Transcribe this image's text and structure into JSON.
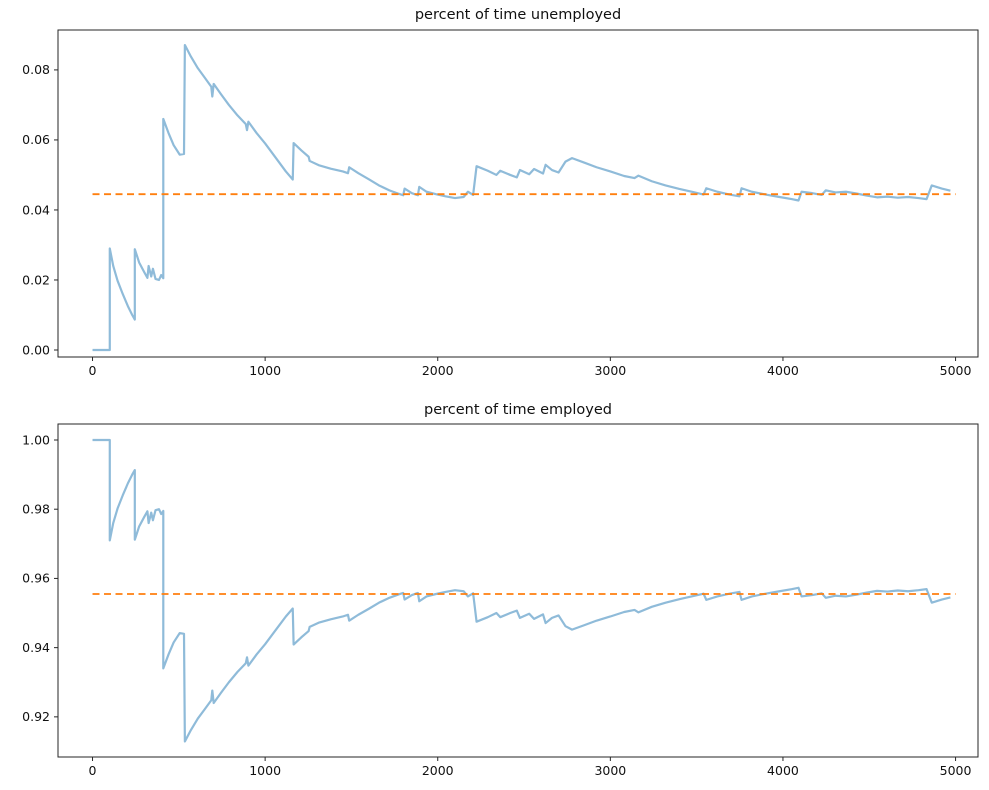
{
  "figure": {
    "background": "#ffffff",
    "text_color": "#111111",
    "spine_color": "#262626",
    "line_color": "#8fbbd9",
    "dash_color": "#ff7f0e"
  },
  "chart_data": [
    {
      "type": "line",
      "title": "percent of time unemployed",
      "xlabel": "",
      "ylabel": "",
      "grid": false,
      "legend": null,
      "xlim": [
        -200,
        5130
      ],
      "ylim": [
        -0.002,
        0.0914
      ],
      "xticks": [
        0,
        1000,
        2000,
        3000,
        4000,
        5000
      ],
      "xtick_labels": [
        "0",
        "1000",
        "2000",
        "3000",
        "4000",
        "5000"
      ],
      "yticks": [
        0.0,
        0.02,
        0.04,
        0.06,
        0.08
      ],
      "ytick_labels": [
        "0.00",
        "0.02",
        "0.04",
        "0.06",
        "0.08"
      ],
      "steady_state_value": 0.0445,
      "series": [
        {
          "color": "#8fbbd9",
          "style": "solid",
          "x": [
            0,
            100,
            100,
            120,
            145,
            175,
            205,
            230,
            245,
            245,
            270,
            300,
            318,
            325,
            340,
            350,
            365,
            385,
            398,
            410,
            410,
            440,
            470,
            505,
            530,
            535,
            570,
            610,
            650,
            688,
            694,
            702,
            745,
            790,
            840,
            888,
            895,
            903,
            950,
            1000,
            1060,
            1120,
            1160,
            1165,
            1210,
            1252,
            1258,
            1310,
            1380,
            1450,
            1480,
            1487,
            1540,
            1600,
            1660,
            1720,
            1775,
            1800,
            1808,
            1850,
            1885,
            1893,
            1935,
            1990,
            2045,
            2100,
            2150,
            2175,
            2205,
            2225,
            2290,
            2340,
            2362,
            2420,
            2458,
            2476,
            2530,
            2558,
            2610,
            2625,
            2662,
            2700,
            2740,
            2778,
            2850,
            2920,
            3000,
            3080,
            3140,
            3162,
            3240,
            3320,
            3400,
            3480,
            3540,
            3556,
            3620,
            3690,
            3748,
            3760,
            3820,
            3900,
            3980,
            4050,
            4090,
            4108,
            4170,
            4225,
            4248,
            4305,
            4365,
            4425,
            4485,
            4545,
            4605,
            4665,
            4725,
            4785,
            4832,
            4862,
            4920,
            4970
          ],
          "y": [
            0.0,
            0.0,
            0.029,
            0.024,
            0.0198,
            0.016,
            0.0125,
            0.01,
            0.0087,
            0.0288,
            0.025,
            0.0222,
            0.0206,
            0.024,
            0.021,
            0.0232,
            0.0203,
            0.02,
            0.0214,
            0.0205,
            0.066,
            0.062,
            0.0585,
            0.0558,
            0.056,
            0.0871,
            0.0838,
            0.0805,
            0.0778,
            0.0752,
            0.0724,
            0.076,
            0.073,
            0.07,
            0.067,
            0.0645,
            0.0628,
            0.0652,
            0.062,
            0.059,
            0.055,
            0.051,
            0.0487,
            0.0591,
            0.057,
            0.0552,
            0.054,
            0.0528,
            0.0518,
            0.051,
            0.0505,
            0.0522,
            0.0505,
            0.0488,
            0.047,
            0.0456,
            0.0446,
            0.0442,
            0.0461,
            0.0448,
            0.0442,
            0.0466,
            0.0452,
            0.0445,
            0.0439,
            0.0434,
            0.0437,
            0.0452,
            0.0443,
            0.0525,
            0.0512,
            0.05,
            0.0512,
            0.05,
            0.0493,
            0.0514,
            0.0502,
            0.0517,
            0.0504,
            0.0529,
            0.0514,
            0.0507,
            0.0538,
            0.0548,
            0.0535,
            0.0522,
            0.051,
            0.0497,
            0.0491,
            0.0498,
            0.0482,
            0.047,
            0.046,
            0.0451,
            0.0444,
            0.0462,
            0.0452,
            0.0444,
            0.0439,
            0.0462,
            0.0452,
            0.0444,
            0.0437,
            0.0431,
            0.0427,
            0.0452,
            0.0448,
            0.0443,
            0.0456,
            0.045,
            0.0452,
            0.0447,
            0.0441,
            0.0436,
            0.0438,
            0.0435,
            0.0437,
            0.0434,
            0.0431,
            0.047,
            0.0461,
            0.0455
          ]
        },
        {
          "color": "#ff7f0e",
          "style": "dashed",
          "x": [
            0,
            5000
          ],
          "y": [
            0.0445,
            0.0445
          ]
        }
      ]
    },
    {
      "type": "line",
      "title": "percent of time employed",
      "xlabel": "",
      "ylabel": "",
      "grid": false,
      "legend": null,
      "xlim": [
        -200,
        5130
      ],
      "ylim": [
        0.9084,
        1.00462
      ],
      "xticks": [
        0,
        1000,
        2000,
        3000,
        4000,
        5000
      ],
      "xtick_labels": [
        "0",
        "1000",
        "2000",
        "3000",
        "4000",
        "5000"
      ],
      "yticks": [
        0.92,
        0.94,
        0.96,
        0.98,
        1.0
      ],
      "ytick_labels": [
        "0.92",
        "0.94",
        "0.96",
        "0.98",
        "1.00"
      ],
      "steady_state_value": 0.9555,
      "series": [
        {
          "color": "#8fbbd9",
          "style": "solid",
          "x": [
            0,
            100,
            100,
            120,
            145,
            175,
            205,
            230,
            245,
            245,
            270,
            300,
            318,
            325,
            340,
            350,
            365,
            385,
            398,
            410,
            410,
            440,
            470,
            505,
            530,
            535,
            570,
            610,
            650,
            688,
            694,
            702,
            745,
            790,
            840,
            888,
            895,
            903,
            950,
            1000,
            1060,
            1120,
            1160,
            1165,
            1210,
            1252,
            1258,
            1310,
            1380,
            1450,
            1480,
            1487,
            1540,
            1600,
            1660,
            1720,
            1775,
            1800,
            1808,
            1850,
            1885,
            1893,
            1935,
            1990,
            2045,
            2100,
            2150,
            2175,
            2205,
            2225,
            2290,
            2340,
            2362,
            2420,
            2458,
            2476,
            2530,
            2558,
            2610,
            2625,
            2662,
            2700,
            2740,
            2778,
            2850,
            2920,
            3000,
            3080,
            3140,
            3162,
            3240,
            3320,
            3400,
            3480,
            3540,
            3556,
            3620,
            3690,
            3748,
            3760,
            3820,
            3900,
            3980,
            4050,
            4090,
            4108,
            4170,
            4225,
            4248,
            4305,
            4365,
            4425,
            4485,
            4545,
            4605,
            4665,
            4725,
            4785,
            4832,
            4862,
            4920,
            4970
          ],
          "y": [
            1.0,
            1.0,
            0.971,
            0.976,
            0.9802,
            0.984,
            0.9875,
            0.99,
            0.9913,
            0.9712,
            0.975,
            0.9778,
            0.9794,
            0.976,
            0.979,
            0.9768,
            0.9797,
            0.98,
            0.9786,
            0.9795,
            0.934,
            0.938,
            0.9415,
            0.9442,
            0.944,
            0.9129,
            0.9162,
            0.9195,
            0.9222,
            0.9248,
            0.9276,
            0.924,
            0.927,
            0.93,
            0.933,
            0.9355,
            0.9372,
            0.9348,
            0.938,
            0.941,
            0.945,
            0.949,
            0.9513,
            0.9409,
            0.943,
            0.9448,
            0.946,
            0.9472,
            0.9482,
            0.949,
            0.9495,
            0.9478,
            0.9495,
            0.9512,
            0.953,
            0.9544,
            0.9554,
            0.9558,
            0.9539,
            0.9552,
            0.9558,
            0.9534,
            0.9548,
            0.9555,
            0.9561,
            0.9566,
            0.9563,
            0.9548,
            0.9557,
            0.9475,
            0.9488,
            0.95,
            0.9488,
            0.95,
            0.9507,
            0.9486,
            0.9498,
            0.9483,
            0.9496,
            0.9471,
            0.9486,
            0.9493,
            0.9462,
            0.9452,
            0.9465,
            0.9478,
            0.949,
            0.9503,
            0.9509,
            0.9502,
            0.9518,
            0.953,
            0.954,
            0.9549,
            0.9556,
            0.9538,
            0.9548,
            0.9556,
            0.9561,
            0.9538,
            0.9548,
            0.9556,
            0.9563,
            0.9569,
            0.9573,
            0.9548,
            0.9552,
            0.9557,
            0.9544,
            0.955,
            0.9548,
            0.9553,
            0.9559,
            0.9564,
            0.9562,
            0.9565,
            0.9563,
            0.9566,
            0.9569,
            0.953,
            0.9539,
            0.9545
          ]
        },
        {
          "color": "#ff7f0e",
          "style": "dashed",
          "x": [
            0,
            5000
          ],
          "y": [
            0.9555,
            0.9555
          ]
        }
      ]
    }
  ]
}
